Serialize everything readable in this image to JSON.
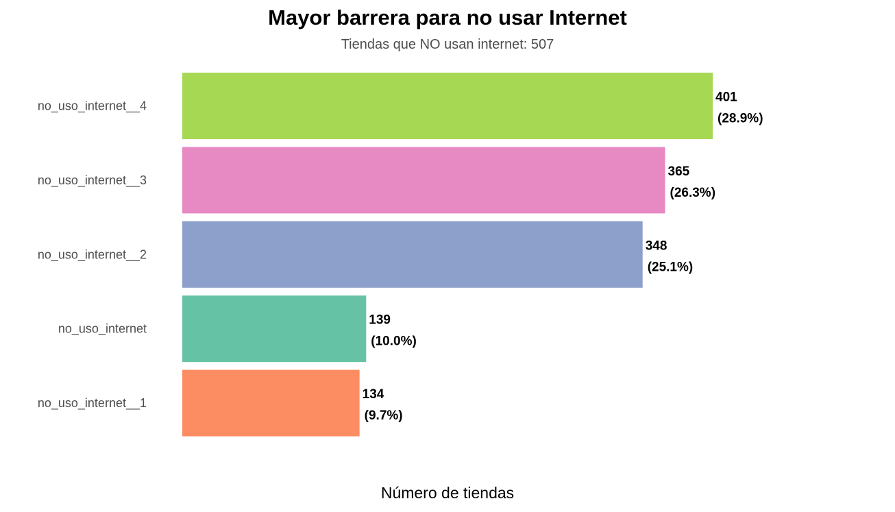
{
  "chart_data": {
    "type": "bar",
    "orientation": "horizontal",
    "title": "Mayor barrera para no usar Internet",
    "subtitle": "Tiendas que NO usan internet: 507",
    "xlabel": "Número de tiendas",
    "ylabel": "",
    "grid": false,
    "legend": "none",
    "categories": [
      "no_uso_internet__4",
      "no_uso_internet__3",
      "no_uso_internet__2",
      "no_uso_internet",
      "no_uso_internet__1"
    ],
    "values": [
      401,
      365,
      348,
      139,
      134
    ],
    "value_labels": [
      "401",
      "365",
      "348",
      "139",
      "134"
    ],
    "percent_labels": [
      "(28.9%)",
      "(26.3%)",
      "(25.1%)",
      "(10.0%)",
      "(9.7%)"
    ],
    "colors": [
      "#a6d854",
      "#e78ac3",
      "#8da0cb",
      "#66c2a5",
      "#fc8d62"
    ],
    "xlim": [
      0,
      401
    ]
  }
}
